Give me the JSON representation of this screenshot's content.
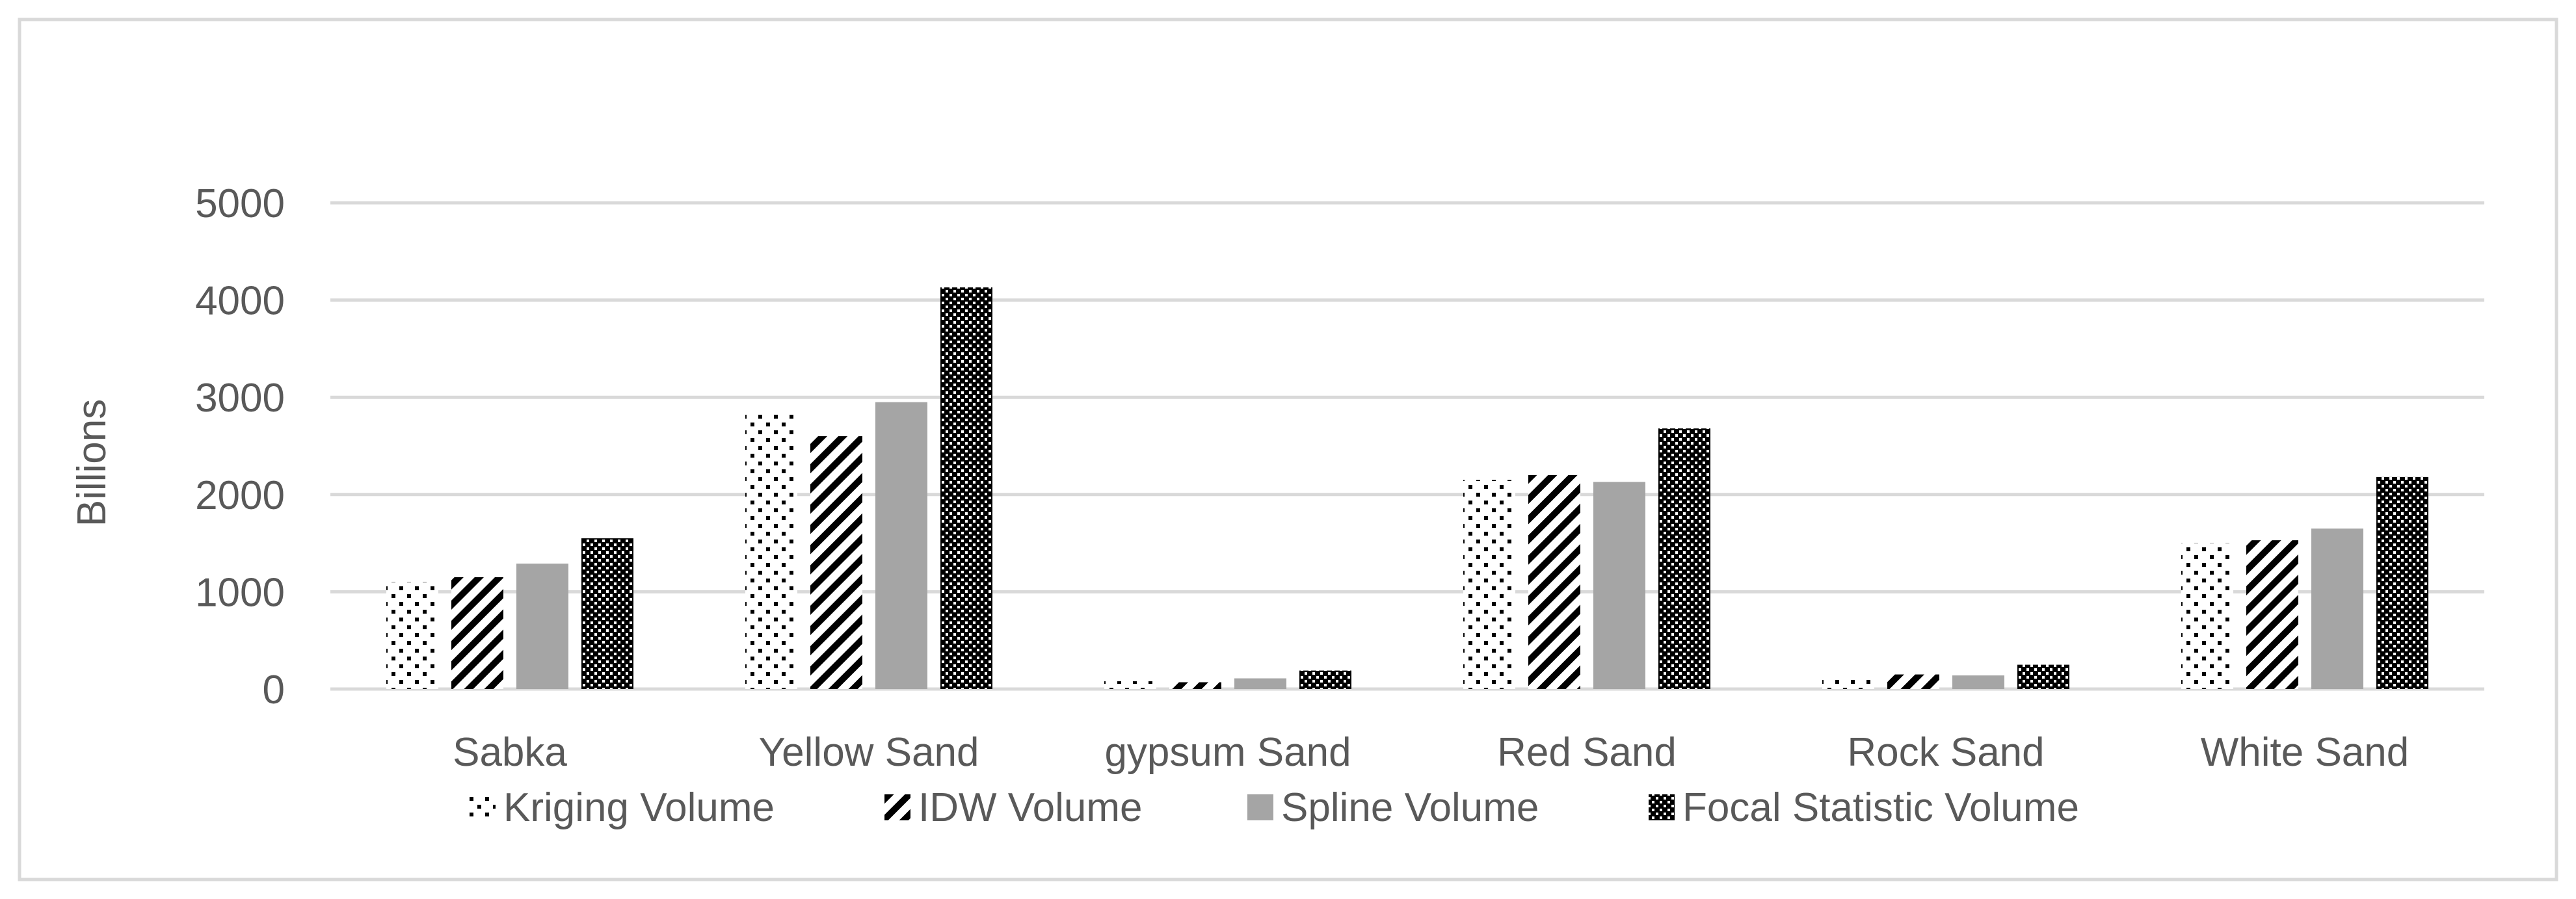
{
  "chart_data": {
    "type": "bar",
    "title": "",
    "xlabel": "",
    "ylabel": "Billions",
    "ylim": [
      0,
      5000
    ],
    "yticks": [
      0,
      1000,
      2000,
      3000,
      4000,
      5000
    ],
    "grid": true,
    "legend_position": "bottom",
    "categories": [
      "Sabka",
      "Yellow Sand",
      "gypsum Sand",
      "Red Sand",
      "Rock Sand",
      "White Sand"
    ],
    "series": [
      {
        "name": "Kriging Volume",
        "pattern": "dots",
        "values": [
          1100,
          2850,
          80,
          2150,
          120,
          1500
        ]
      },
      {
        "name": "IDW Volume",
        "pattern": "diagonal-stripes",
        "values": [
          1150,
          2600,
          70,
          2200,
          150,
          1530
        ]
      },
      {
        "name": "Spline Volume",
        "pattern": "solid",
        "color": "#a5a5a5",
        "values": [
          1290,
          2950,
          110,
          2130,
          140,
          1650
        ]
      },
      {
        "name": "Focal Statistic Volume",
        "pattern": "checker",
        "values": [
          1550,
          4130,
          190,
          2680,
          250,
          2180
        ]
      }
    ]
  }
}
